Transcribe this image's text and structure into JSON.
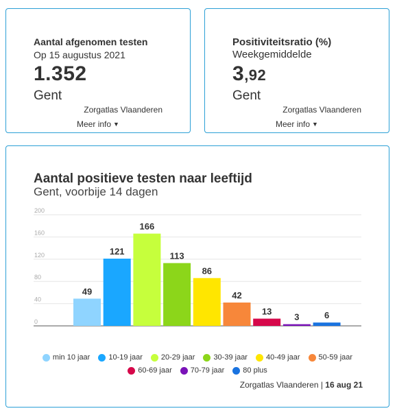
{
  "kpi_tests": {
    "title": "Aantal afgenomen testen",
    "subtitle": "Op 15 augustus 2021",
    "value": "1.352",
    "region": "Gent",
    "source": "Zorgatlas Vlaanderen",
    "more": "Meer info"
  },
  "kpi_positivity": {
    "title": "Positiviteitsratio (%)",
    "subtitle": "Weekgemiddelde",
    "value_int": "3",
    "value_dec": ",92",
    "region": "Gent",
    "source": "Zorgatlas Vlaanderen",
    "more": "Meer info"
  },
  "chart_card": {
    "title": "Aantal positieve testen naar leeftijd",
    "subtitle": "Gent, voorbije 14 dagen",
    "source": "Zorgatlas Vlaanderen",
    "date": "16 aug 21"
  },
  "chart_data": {
    "type": "bar",
    "categories": [
      "min 10 jaar",
      "10-19 jaar",
      "20-29 jaar",
      "30-39 jaar",
      "40-49 jaar",
      "50-59 jaar",
      "60-69 jaar",
      "70-79 jaar",
      "80 plus"
    ],
    "values": [
      49,
      121,
      166,
      113,
      86,
      42,
      13,
      3,
      6
    ],
    "colors": [
      "#8fd4ff",
      "#1aa7ff",
      "#c6ff3c",
      "#8cd61a",
      "#ffe600",
      "#f7873a",
      "#d6084a",
      "#7a12b8",
      "#1a73e0"
    ],
    "yticks": [
      0,
      40,
      80,
      120,
      160,
      200
    ],
    "ylim": [
      0,
      200
    ],
    "grid": true,
    "legend": "bottom"
  }
}
